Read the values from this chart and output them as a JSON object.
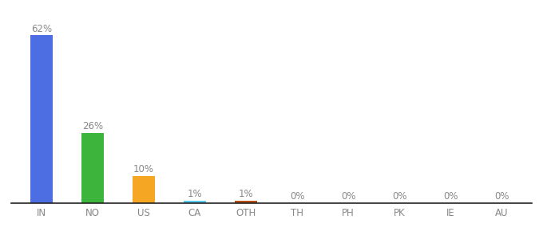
{
  "categories": [
    "IN",
    "NO",
    "US",
    "CA",
    "OTH",
    "TH",
    "PH",
    "PK",
    "IE",
    "AU"
  ],
  "values": [
    62,
    26,
    10,
    1,
    1,
    0,
    0,
    0,
    0,
    0
  ],
  "labels": [
    "62%",
    "26%",
    "10%",
    "1%",
    "1%",
    "0%",
    "0%",
    "0%",
    "0%",
    "0%"
  ],
  "bar_colors": [
    "#4d6ee3",
    "#3db53d",
    "#f5a623",
    "#56c8f0",
    "#b84c10",
    "#888888",
    "#888888",
    "#888888",
    "#888888",
    "#888888"
  ],
  "background_color": "#ffffff",
  "ylim": [
    0,
    68
  ],
  "label_fontsize": 8.5,
  "tick_fontsize": 8.5,
  "label_color": "#888888",
  "tick_color": "#888888",
  "bar_width": 0.45,
  "bottom_spine_color": "#222222"
}
